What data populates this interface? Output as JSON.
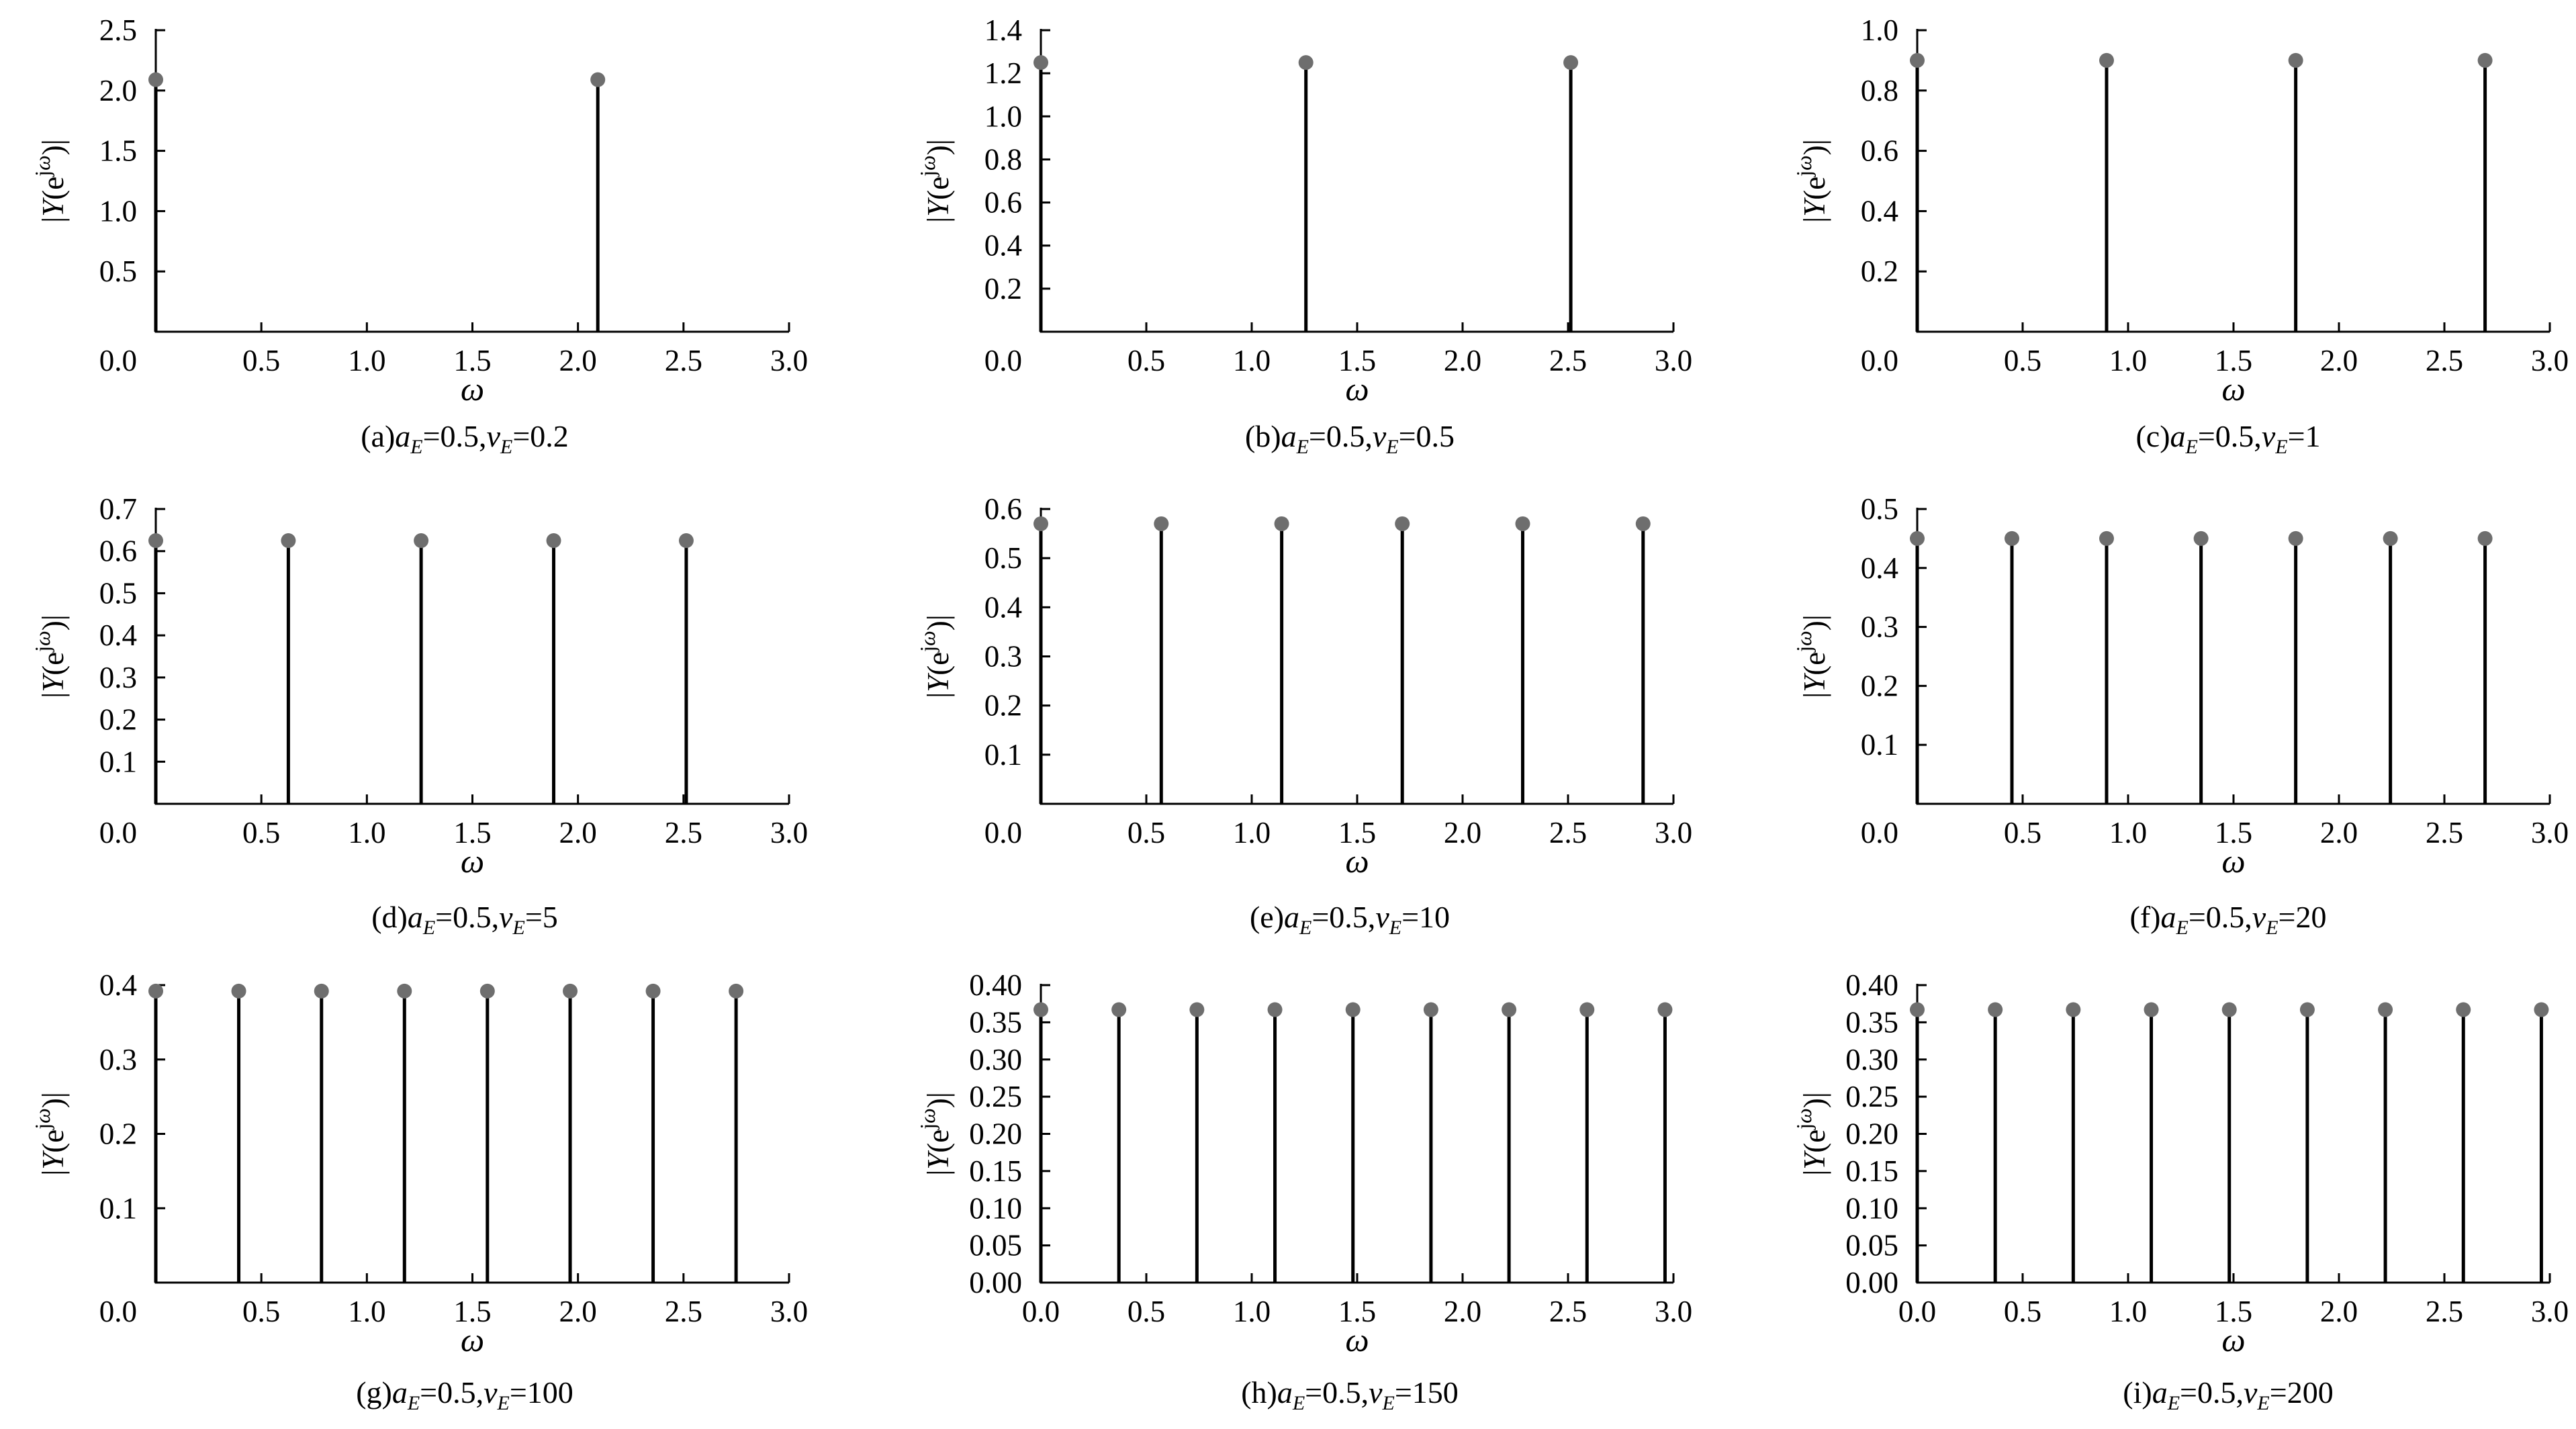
{
  "figure": {
    "ylabel": "|Y(e^{jω})|",
    "xlabel": "ω"
  },
  "chart_data": [
    {
      "type": "stem",
      "id": "a",
      "caption": {
        "prefix": "(a)",
        "a": "a",
        "a_sub": "E",
        "a_val": "=0.5,",
        "v": "v",
        "v_sub": "E",
        "v_val": "=0.2"
      },
      "xlim": [
        0,
        3.0
      ],
      "ylim": [
        0,
        2.5
      ],
      "xticks": [
        0.5,
        1.0,
        1.5,
        2.0,
        2.5,
        3.0
      ],
      "xtick_labels": [
        "0.5",
        "1.0",
        "1.5",
        "2.0",
        "2.5",
        "3.0"
      ],
      "origin_label": "0.0",
      "yticks": [
        0.5,
        1.0,
        1.5,
        2.0,
        2.5
      ],
      "ytick_labels": [
        "0.5",
        "1.0",
        "1.5",
        "2.0",
        "2.5"
      ],
      "stem_value": 2.09,
      "x": [
        0.0,
        2.094
      ]
    },
    {
      "type": "stem",
      "id": "b",
      "caption": {
        "prefix": "(b)",
        "a": "a",
        "a_sub": "E",
        "a_val": "=0.5,",
        "v": "v",
        "v_sub": "E",
        "v_val": "=0.5"
      },
      "xlim": [
        0,
        3.0
      ],
      "ylim": [
        0,
        1.4
      ],
      "xticks": [
        0.5,
        1.0,
        1.5,
        2.0,
        2.5,
        3.0
      ],
      "xtick_labels": [
        "0.5",
        "1.0",
        "1.5",
        "2.0",
        "2.5",
        "3.0"
      ],
      "origin_label": "0.0",
      "yticks": [
        0.2,
        0.4,
        0.6,
        0.8,
        1.0,
        1.2,
        1.4
      ],
      "ytick_labels": [
        "0.2",
        "0.4",
        "0.6",
        "0.8",
        "1.0",
        "1.2",
        "1.4"
      ],
      "stem_value": 1.25,
      "x": [
        0.0,
        1.257,
        2.513
      ]
    },
    {
      "type": "stem",
      "id": "c",
      "caption": {
        "prefix": "(c)",
        "a": "a",
        "a_sub": "E",
        "a_val": "=0.5,",
        "v": "v",
        "v_sub": "E",
        "v_val": "=1"
      },
      "xlim": [
        0,
        3.0
      ],
      "ylim": [
        0,
        1.0
      ],
      "xticks": [
        0.5,
        1.0,
        1.5,
        2.0,
        2.5,
        3.0
      ],
      "xtick_labels": [
        "0.5",
        "1.0",
        "1.5",
        "2.0",
        "2.5",
        "3.0"
      ],
      "origin_label": "0.0",
      "yticks": [
        0.2,
        0.4,
        0.6,
        0.8,
        1.0
      ],
      "ytick_labels": [
        "0.2",
        "0.4",
        "0.6",
        "0.8",
        "1.0"
      ],
      "stem_value": 0.9,
      "x": [
        0.0,
        0.898,
        1.795,
        2.693
      ]
    },
    {
      "type": "stem",
      "id": "d",
      "caption": {
        "prefix": "(d)",
        "a": "a",
        "a_sub": "E",
        "a_val": "=0.5,",
        "v": "v",
        "v_sub": "E",
        "v_val": "=5"
      },
      "xlim": [
        0,
        3.0
      ],
      "ylim": [
        0,
        0.7
      ],
      "xticks": [
        0.5,
        1.0,
        1.5,
        2.0,
        2.5,
        3.0
      ],
      "xtick_labels": [
        "0.5",
        "1.0",
        "1.5",
        "2.0",
        "2.5",
        "3.0"
      ],
      "origin_label": "0.0",
      "yticks": [
        0.1,
        0.2,
        0.3,
        0.4,
        0.5,
        0.6,
        0.7
      ],
      "ytick_labels": [
        "0.1",
        "0.2",
        "0.3",
        "0.4",
        "0.5",
        "0.6",
        "0.7"
      ],
      "stem_value": 0.625,
      "x": [
        0.0,
        0.628,
        1.257,
        1.885,
        2.513
      ]
    },
    {
      "type": "stem",
      "id": "e",
      "caption": {
        "prefix": "(e)",
        "a": "a",
        "a_sub": "E",
        "a_val": "=0.5,",
        "v": "v",
        "v_sub": "E",
        "v_val": "=10"
      },
      "xlim": [
        0,
        3.0
      ],
      "ylim": [
        0,
        0.6
      ],
      "xticks": [
        0.5,
        1.0,
        1.5,
        2.0,
        2.5,
        3.0
      ],
      "xtick_labels": [
        "0.5",
        "1.0",
        "1.5",
        "2.0",
        "2.5",
        "3.0"
      ],
      "origin_label": "0.0",
      "yticks": [
        0.1,
        0.2,
        0.3,
        0.4,
        0.5,
        0.6
      ],
      "ytick_labels": [
        "0.1",
        "0.2",
        "0.3",
        "0.4",
        "0.5",
        "0.6"
      ],
      "stem_value": 0.57,
      "x": [
        0.0,
        0.571,
        1.142,
        1.714,
        2.285,
        2.856
      ]
    },
    {
      "type": "stem",
      "id": "f",
      "caption": {
        "prefix": "(f)",
        "a": "a",
        "a_sub": "E",
        "a_val": "=0.5,",
        "v": "v",
        "v_sub": "E",
        "v_val": "=20"
      },
      "xlim": [
        0,
        3.0
      ],
      "ylim": [
        0,
        0.5
      ],
      "xticks": [
        0.5,
        1.0,
        1.5,
        2.0,
        2.5,
        3.0
      ],
      "xtick_labels": [
        "0.5",
        "1.0",
        "1.5",
        "2.0",
        "2.5",
        "3.0"
      ],
      "origin_label": "0.0",
      "yticks": [
        0.1,
        0.2,
        0.3,
        0.4,
        0.5
      ],
      "ytick_labels": [
        "0.1",
        "0.2",
        "0.3",
        "0.4",
        "0.5"
      ],
      "stem_value": 0.45,
      "x": [
        0.0,
        0.449,
        0.898,
        1.346,
        1.795,
        2.244,
        2.693
      ]
    },
    {
      "type": "stem",
      "id": "g",
      "caption": {
        "prefix": "(g)",
        "a": "a",
        "a_sub": "E",
        "a_val": "=0.5,",
        "v": "v",
        "v_sub": "E",
        "v_val": "=100"
      },
      "xlim": [
        0,
        3.0
      ],
      "ylim": [
        0,
        0.4
      ],
      "xticks": [
        0.5,
        1.0,
        1.5,
        2.0,
        2.5,
        3.0
      ],
      "xtick_labels": [
        "0.5",
        "1.0",
        "1.5",
        "2.0",
        "2.5",
        "3.0"
      ],
      "origin_label": "0.0",
      "yticks": [
        0.1,
        0.2,
        0.3,
        0.4
      ],
      "ytick_labels": [
        "0.1",
        "0.2",
        "0.3",
        "0.4"
      ],
      "stem_value": 0.392,
      "x": [
        0.0,
        0.393,
        0.785,
        1.178,
        1.571,
        1.963,
        2.356,
        2.749
      ]
    },
    {
      "type": "stem",
      "id": "h",
      "caption": {
        "prefix": "(h)",
        "a": "a",
        "a_sub": "E",
        "a_val": "=0.5,",
        "v": "v",
        "v_sub": "E",
        "v_val": "=150"
      },
      "xlim": [
        0,
        3.0
      ],
      "ylim": [
        0,
        0.4
      ],
      "xticks": [
        0.0,
        0.5,
        1.0,
        1.5,
        2.0,
        2.5,
        3.0
      ],
      "xtick_labels": [
        "0.0",
        "0.5",
        "1.0",
        "1.5",
        "2.0",
        "2.5",
        "3.0"
      ],
      "origin_label": "",
      "yticks": [
        0.0,
        0.05,
        0.1,
        0.15,
        0.2,
        0.25,
        0.3,
        0.35,
        0.4
      ],
      "ytick_labels": [
        "0.00",
        "0.05",
        "0.10",
        "0.15",
        "0.20",
        "0.25",
        "0.30",
        "0.35",
        "0.40"
      ],
      "stem_value": 0.367,
      "x": [
        0.0,
        0.37,
        0.74,
        1.11,
        1.48,
        1.85,
        2.22,
        2.59,
        2.96
      ]
    },
    {
      "type": "stem",
      "id": "i",
      "caption": {
        "prefix": "(i)",
        "a": "a",
        "a_sub": "E",
        "a_val": "=0.5,",
        "v": "v",
        "v_sub": "E",
        "v_val": "=200"
      },
      "xlim": [
        0,
        3.0
      ],
      "ylim": [
        0,
        0.4
      ],
      "xticks": [
        0.0,
        0.5,
        1.0,
        1.5,
        2.0,
        2.5,
        3.0
      ],
      "xtick_labels": [
        "0.0",
        "0.5",
        "1.0",
        "1.5",
        "2.0",
        "2.5",
        "3.0"
      ],
      "origin_label": "",
      "yticks": [
        0.0,
        0.05,
        0.1,
        0.15,
        0.2,
        0.25,
        0.3,
        0.35,
        0.4
      ],
      "ytick_labels": [
        "0.00",
        "0.05",
        "0.10",
        "0.15",
        "0.20",
        "0.25",
        "0.30",
        "0.35",
        "0.40"
      ],
      "stem_value": 0.367,
      "x": [
        0.0,
        0.37,
        0.74,
        1.11,
        1.48,
        1.85,
        2.22,
        2.59,
        2.96
      ]
    }
  ]
}
